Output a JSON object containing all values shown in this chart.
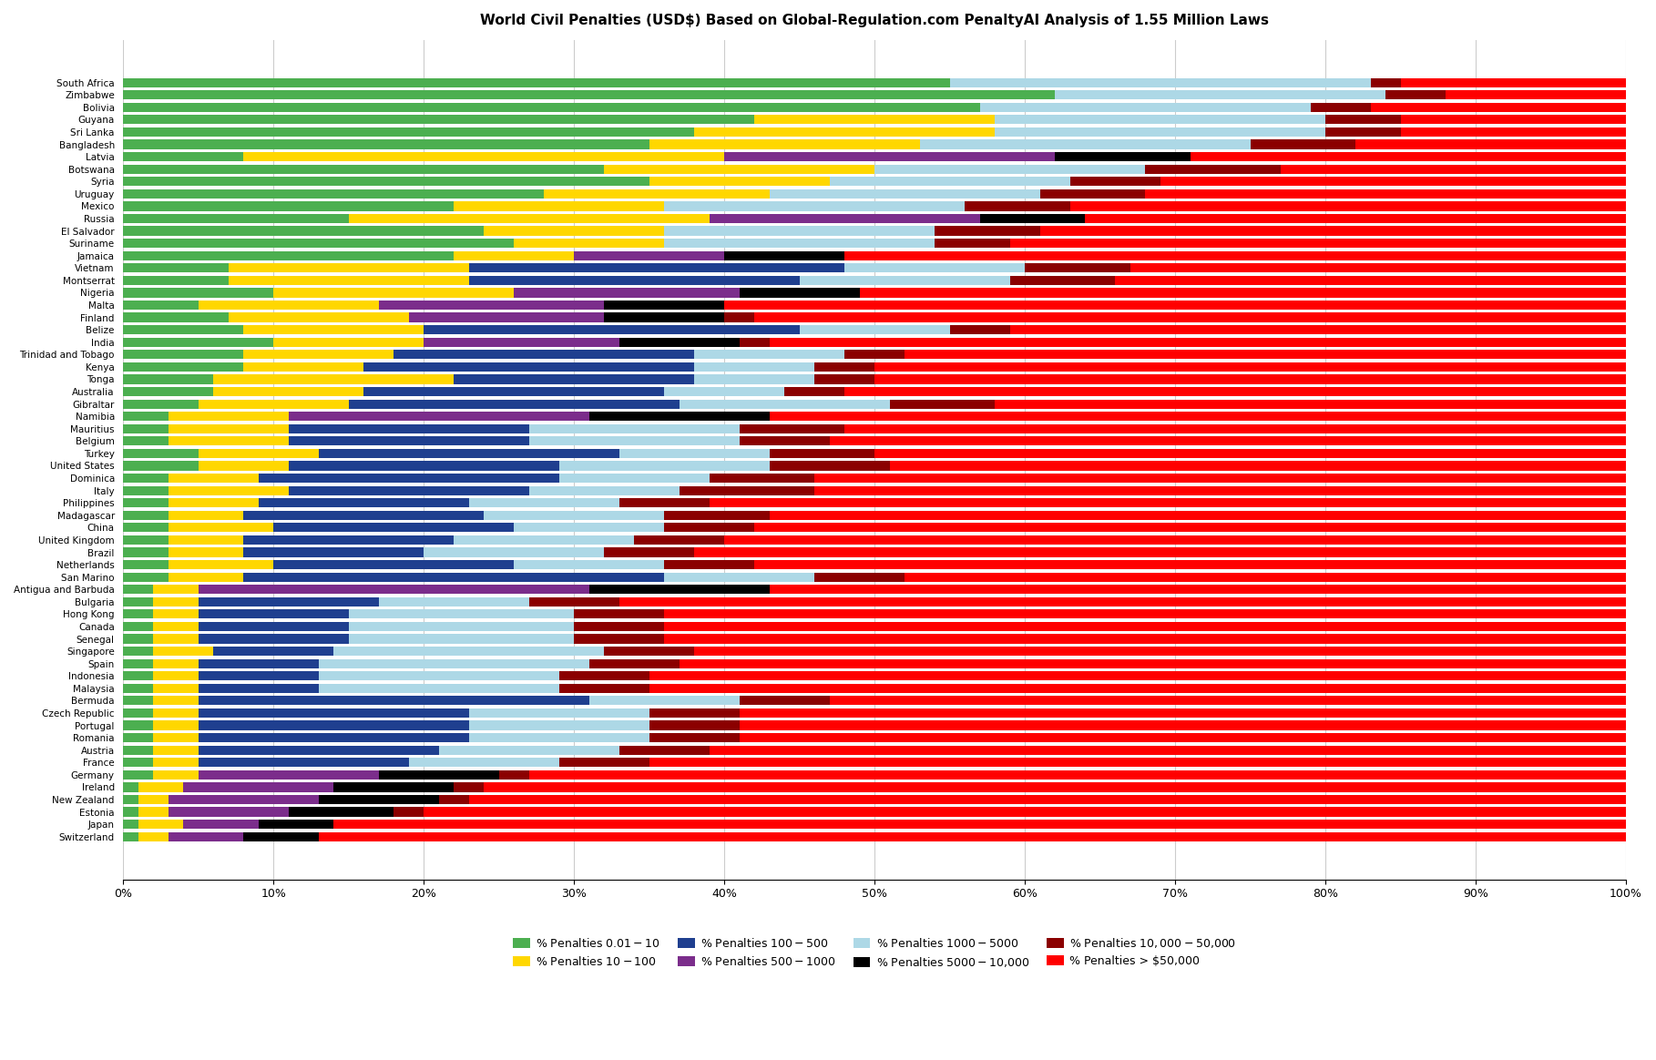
{
  "title": "World Civil Penalties (USD$) Based on Global-Regulation.com PenaltyAI Analysis of 1.55 Million Laws",
  "colors": [
    "#4CAF50",
    "#FFD700",
    "#1F3F8F",
    "#7B2D8B",
    "#ADD8E6",
    "#000000",
    "#8B0000",
    "#FF0000"
  ],
  "legend_labels": [
    "% Penalties $0.01-$10",
    "% Penalties $10-$100",
    "% Penalties $100-$500",
    "% Penalties $500-$1000",
    "% Penalties $1000-$5000",
    "% Penalties $5000-$10,000",
    "% Penalties $10,000-$50,000",
    "% Penalties > $50,000"
  ],
  "countries": [
    "South Africa",
    "Zimbabwe",
    "Bolivia",
    "Guyana",
    "Sri Lanka",
    "Bangladesh",
    "Latvia",
    "Botswana",
    "Syria",
    "Uruguay",
    "Mexico",
    "Russia",
    "El Salvador",
    "Suriname",
    "Jamaica",
    "Vietnam",
    "Montserrat",
    "Nigeria",
    "Malta",
    "Finland",
    "Belize",
    "India",
    "Trinidad and Tobago",
    "Kenya",
    "Tonga",
    "Australia",
    "Gibraltar",
    "Namibia",
    "Mauritius",
    "Belgium",
    "Turkey",
    "United States",
    "Dominica",
    "Italy",
    "Philippines",
    "Madagascar",
    "China",
    "United Kingdom",
    "Brazil",
    "Netherlands",
    "San Marino",
    "Antigua and Barbuda",
    "Bulgaria",
    "Hong Kong",
    "Canada",
    "Senegal",
    "Singapore",
    "Spain",
    "Indonesia",
    "Malaysia",
    "Bermuda",
    "Czech Republic",
    "Portugal",
    "Romania",
    "Austria",
    "France",
    "Germany",
    "Ireland",
    "New Zealand",
    "Estonia",
    "Japan",
    "Switzerland"
  ],
  "data": [
    [
      55,
      0,
      0,
      0,
      28,
      0,
      2,
      15
    ],
    [
      62,
      0,
      0,
      0,
      22,
      0,
      4,
      12
    ],
    [
      57,
      0,
      0,
      0,
      22,
      0,
      4,
      17
    ],
    [
      42,
      16,
      0,
      0,
      22,
      0,
      5,
      15
    ],
    [
      38,
      20,
      0,
      0,
      22,
      0,
      5,
      15
    ],
    [
      35,
      18,
      0,
      0,
      22,
      0,
      7,
      18
    ],
    [
      8,
      32,
      0,
      22,
      0,
      9,
      0,
      29
    ],
    [
      32,
      18,
      0,
      0,
      18,
      0,
      9,
      23
    ],
    [
      35,
      12,
      0,
      0,
      16,
      0,
      6,
      31
    ],
    [
      28,
      15,
      0,
      0,
      18,
      0,
      7,
      32
    ],
    [
      22,
      14,
      0,
      0,
      20,
      0,
      7,
      37
    ],
    [
      15,
      24,
      0,
      18,
      0,
      7,
      0,
      36
    ],
    [
      24,
      12,
      0,
      0,
      18,
      0,
      7,
      39
    ],
    [
      26,
      10,
      0,
      0,
      18,
      0,
      5,
      41
    ],
    [
      22,
      8,
      0,
      10,
      0,
      8,
      0,
      52
    ],
    [
      7,
      16,
      25,
      0,
      12,
      0,
      7,
      33
    ],
    [
      7,
      16,
      22,
      0,
      14,
      0,
      7,
      34
    ],
    [
      10,
      16,
      0,
      15,
      0,
      8,
      0,
      51
    ],
    [
      5,
      12,
      0,
      15,
      0,
      8,
      0,
      60
    ],
    [
      7,
      12,
      0,
      13,
      0,
      8,
      2,
      58
    ],
    [
      8,
      12,
      25,
      0,
      10,
      0,
      4,
      41
    ],
    [
      10,
      10,
      0,
      13,
      0,
      8,
      2,
      57
    ],
    [
      8,
      10,
      20,
      0,
      10,
      0,
      4,
      48
    ],
    [
      8,
      8,
      22,
      0,
      8,
      0,
      4,
      50
    ],
    [
      6,
      16,
      16,
      0,
      8,
      0,
      4,
      50
    ],
    [
      6,
      10,
      20,
      0,
      8,
      0,
      4,
      52
    ],
    [
      5,
      10,
      22,
      0,
      14,
      0,
      7,
      42
    ],
    [
      3,
      8,
      0,
      20,
      0,
      12,
      0,
      57
    ],
    [
      3,
      8,
      16,
      0,
      14,
      0,
      7,
      52
    ],
    [
      3,
      8,
      16,
      0,
      14,
      0,
      6,
      53
    ],
    [
      5,
      8,
      20,
      0,
      10,
      0,
      7,
      50
    ],
    [
      5,
      6,
      18,
      0,
      14,
      0,
      8,
      49
    ],
    [
      3,
      6,
      20,
      0,
      10,
      0,
      7,
      54
    ],
    [
      3,
      8,
      16,
      0,
      10,
      0,
      9,
      54
    ],
    [
      3,
      6,
      14,
      0,
      10,
      0,
      6,
      61
    ],
    [
      3,
      5,
      16,
      0,
      12,
      0,
      7,
      57
    ],
    [
      3,
      7,
      16,
      0,
      10,
      0,
      6,
      58
    ],
    [
      3,
      5,
      14,
      0,
      12,
      0,
      6,
      60
    ],
    [
      3,
      5,
      12,
      0,
      12,
      0,
      6,
      62
    ],
    [
      3,
      7,
      16,
      0,
      10,
      0,
      6,
      58
    ],
    [
      3,
      5,
      28,
      0,
      10,
      0,
      6,
      48
    ],
    [
      2,
      3,
      0,
      26,
      0,
      12,
      0,
      57
    ],
    [
      2,
      3,
      12,
      0,
      10,
      0,
      6,
      67
    ],
    [
      2,
      3,
      10,
      0,
      15,
      0,
      6,
      64
    ],
    [
      2,
      3,
      10,
      0,
      15,
      0,
      6,
      64
    ],
    [
      2,
      3,
      10,
      0,
      15,
      0,
      6,
      64
    ],
    [
      2,
      4,
      8,
      0,
      18,
      0,
      6,
      62
    ],
    [
      2,
      3,
      8,
      0,
      18,
      0,
      6,
      63
    ],
    [
      2,
      3,
      8,
      0,
      16,
      0,
      6,
      65
    ],
    [
      2,
      3,
      8,
      0,
      16,
      0,
      6,
      65
    ],
    [
      2,
      3,
      26,
      0,
      10,
      0,
      6,
      53
    ],
    [
      2,
      3,
      18,
      0,
      12,
      0,
      6,
      59
    ],
    [
      2,
      3,
      18,
      0,
      12,
      0,
      6,
      59
    ],
    [
      2,
      3,
      18,
      0,
      12,
      0,
      6,
      59
    ],
    [
      2,
      3,
      16,
      0,
      12,
      0,
      6,
      61
    ],
    [
      2,
      3,
      14,
      0,
      10,
      0,
      6,
      65
    ],
    [
      2,
      3,
      0,
      12,
      0,
      8,
      2,
      73
    ],
    [
      1,
      3,
      0,
      10,
      0,
      8,
      2,
      76
    ],
    [
      1,
      2,
      0,
      10,
      0,
      8,
      2,
      77
    ],
    [
      1,
      2,
      0,
      8,
      0,
      7,
      2,
      80
    ],
    [
      1,
      3,
      0,
      5,
      0,
      5,
      0,
      86
    ],
    [
      1,
      2,
      0,
      5,
      0,
      5,
      0,
      87
    ]
  ]
}
